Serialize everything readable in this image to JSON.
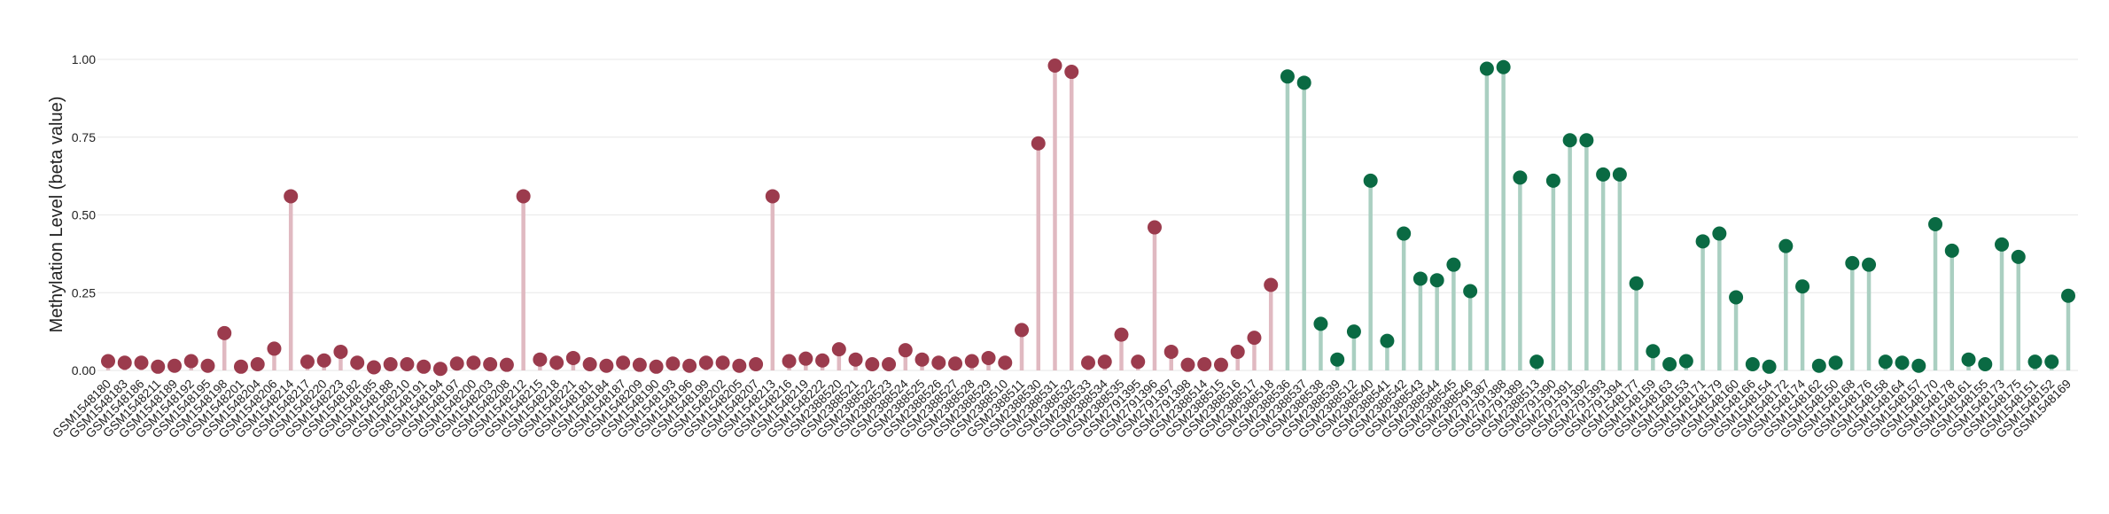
{
  "chart_data": {
    "type": "lollipop",
    "ylabel": "Methylation Level (beta value)",
    "ylim": [
      0,
      1
    ],
    "yticks": [
      {
        "value": 0,
        "label": "0.00"
      },
      {
        "value": 0.25,
        "label": "0.25"
      },
      {
        "value": 0.5,
        "label": "0.50"
      },
      {
        "value": 0.75,
        "label": "0.75"
      },
      {
        "value": 1,
        "label": "1.00"
      }
    ],
    "grid": true,
    "series": [
      {
        "color": "#9b3b4d",
        "stem_color": "#e0b9c1",
        "categories": [
          "GSM1548180",
          "GSM1548183",
          "GSM1548186",
          "GSM1548211",
          "GSM1548189",
          "GSM1548192",
          "GSM1548195",
          "GSM1548198",
          "GSM1548201",
          "GSM1548204",
          "GSM1548206",
          "GSM1548214",
          "GSM1548217",
          "GSM1548220",
          "GSM1548223",
          "GSM1548182",
          "GSM1548185",
          "GSM1548188",
          "GSM1548210",
          "GSM1548191",
          "GSM1548194",
          "GSM1548197",
          "GSM1548200",
          "GSM1548203",
          "GSM1548208",
          "GSM1548212",
          "GSM1548215",
          "GSM1548218",
          "GSM1548221",
          "GSM1548181",
          "GSM1548184",
          "GSM1548187",
          "GSM1548209",
          "GSM1548190",
          "GSM1548193",
          "GSM1548196",
          "GSM1548199",
          "GSM1548202",
          "GSM1548205",
          "GSM1548207",
          "GSM1548213",
          "GSM1548216",
          "GSM1548219",
          "GSM1548222",
          "GSM2388520",
          "GSM2388521",
          "GSM2388522",
          "GSM2388523",
          "GSM2388524",
          "GSM2388525",
          "GSM2388526",
          "GSM2388527",
          "GSM2388528",
          "GSM2388529",
          "GSM2388510",
          "GSM2388511",
          "GSM2388530",
          "GSM2388531",
          "GSM2388532",
          "GSM2388533",
          "GSM2388534",
          "GSM2388535",
          "GSM2791395",
          "GSM2791396",
          "GSM2791397",
          "GSM2791398",
          "GSM2388514",
          "GSM2388515",
          "GSM2388516",
          "GSM2388517",
          "GSM2388518"
        ],
        "values": [
          0.03,
          0.025,
          0.025,
          0.012,
          0.015,
          0.03,
          0.015,
          0.12,
          0.012,
          0.02,
          0.07,
          0.56,
          0.028,
          0.032,
          0.06,
          0.025,
          0.01,
          0.02,
          0.02,
          0.012,
          0.005,
          0.022,
          0.025,
          0.02,
          0.018,
          0.56,
          0.035,
          0.025,
          0.04,
          0.02,
          0.015,
          0.025,
          0.018,
          0.012,
          0.022,
          0.015,
          0.025,
          0.025,
          0.015,
          0.02,
          0.56,
          0.03,
          0.038,
          0.032,
          0.068,
          0.035,
          0.02,
          0.02,
          0.065,
          0.035,
          0.025,
          0.022,
          0.03,
          0.04,
          0.025,
          0.13,
          0.73,
          0.98,
          0.96,
          0.025,
          0.028,
          0.115,
          0.028,
          0.46,
          0.06,
          0.018,
          0.02,
          0.018,
          0.06,
          0.105,
          0.275
        ]
      },
      {
        "color": "#0a6a43",
        "stem_color": "#aacfc1",
        "categories": [
          "GSM2388536",
          "GSM2388537",
          "GSM2388538",
          "GSM2388539",
          "GSM2388512",
          "GSM2388540",
          "GSM2388541",
          "GSM2388542",
          "GSM2388543",
          "GSM2388544",
          "GSM2388545",
          "GSM2388546",
          "GSM2791387",
          "GSM2791388",
          "GSM2791389",
          "GSM2388513",
          "GSM2791390",
          "GSM2791391",
          "GSM2791392",
          "GSM2791393",
          "GSM2791394",
          "GSM1548177",
          "GSM1548159",
          "GSM1548163",
          "GSM1548153",
          "GSM1548171",
          "GSM1548179",
          "GSM1548160",
          "GSM1548166",
          "GSM1548154",
          "GSM1548172",
          "GSM1548174",
          "GSM1548162",
          "GSM1548150",
          "GSM1548168",
          "GSM1548176",
          "GSM1548158",
          "GSM1548164",
          "GSM1548157",
          "GSM1548170",
          "GSM1548178",
          "GSM1548161",
          "GSM1548155",
          "GSM1548173",
          "GSM1548175",
          "GSM1548151",
          "GSM1548152",
          "GSM1548169"
        ],
        "values": [
          0.945,
          0.925,
          0.15,
          0.035,
          0.125,
          0.61,
          0.095,
          0.44,
          0.295,
          0.29,
          0.34,
          0.255,
          0.97,
          0.975,
          0.62,
          0.028,
          0.61,
          0.74,
          0.74,
          0.63,
          0.63,
          0.28,
          0.062,
          0.02,
          0.03,
          0.415,
          0.44,
          0.235,
          0.02,
          0.012,
          0.4,
          0.27,
          0.015,
          0.025,
          0.345,
          0.34,
          0.028,
          0.025,
          0.015,
          0.47,
          0.385,
          0.035,
          0.02,
          0.405,
          0.365,
          0.028,
          0.028,
          0.24
        ]
      }
    ]
  }
}
